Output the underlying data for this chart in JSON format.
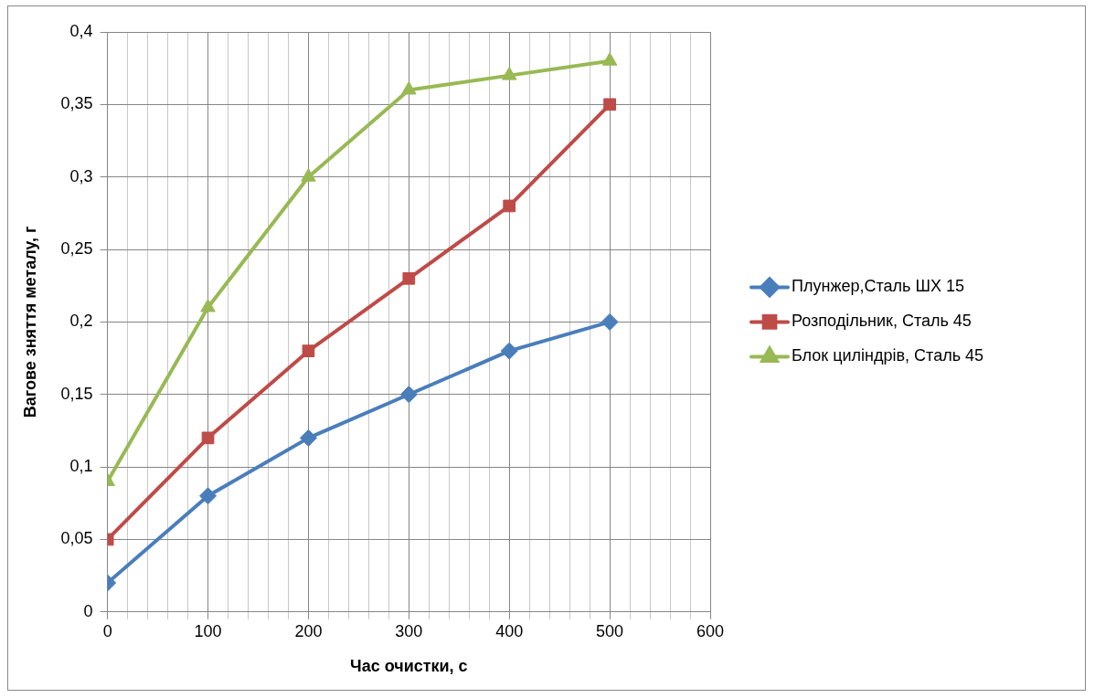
{
  "chart_data": {
    "type": "line",
    "xlabel": "Час очистки, с",
    "ylabel": "Вагове зняття металу, г",
    "x": [
      0,
      100,
      200,
      300,
      400,
      500
    ],
    "series": [
      {
        "name": "Плунжер,Сталь ШХ 15",
        "color": "#4a7ebb",
        "marker": "diamond",
        "values": [
          0.02,
          0.08,
          0.12,
          0.15,
          0.18,
          0.2
        ]
      },
      {
        "name": "Розподільник, Сталь 45",
        "color": "#be4b48",
        "marker": "square",
        "values": [
          0.05,
          0.12,
          0.18,
          0.23,
          0.28,
          0.35
        ]
      },
      {
        "name": "Блок циліндрів, Сталь 45",
        "color": "#98b954",
        "marker": "triangle",
        "values": [
          0.09,
          0.21,
          0.3,
          0.36,
          0.37,
          0.38
        ]
      }
    ],
    "xlim": [
      0,
      600
    ],
    "xticks": [
      0,
      {
        "value": 20,
        "label": null
      },
      {
        "value": 40,
        "label": null
      },
      {
        "value": 60,
        "label": null
      },
      {
        "value": 80,
        "label": null
      },
      100,
      {
        "value": 120,
        "label": null
      },
      {
        "value": 140,
        "label": null
      },
      {
        "value": 160,
        "label": null
      },
      {
        "value": 180,
        "label": null
      },
      200,
      {
        "value": 220,
        "label": null
      },
      {
        "value": 240,
        "label": null
      },
      {
        "value": 260,
        "label": null
      },
      {
        "value": 280,
        "label": null
      },
      300,
      {
        "value": 320,
        "label": null
      },
      {
        "value": 340,
        "label": null
      },
      {
        "value": 360,
        "label": null
      },
      {
        "value": 380,
        "label": null
      },
      400,
      {
        "value": 420,
        "label": null
      },
      {
        "value": 440,
        "label": null
      },
      {
        "value": 460,
        "label": null
      },
      {
        "value": 480,
        "label": null
      },
      500,
      {
        "value": 520,
        "label": null
      },
      {
        "value": 540,
        "label": null
      },
      {
        "value": 560,
        "label": null
      },
      {
        "value": 580,
        "label": null
      },
      600
    ],
    "ylim": [
      0,
      0.4
    ],
    "yticks": [
      {
        "value": 0,
        "label": "0"
      },
      {
        "value": 0.05,
        "label": "0,05"
      },
      {
        "value": 0.1,
        "label": "0,1"
      },
      {
        "value": 0.15,
        "label": "0,15"
      },
      {
        "value": 0.2,
        "label": "0,2"
      },
      {
        "value": 0.25,
        "label": "0,25"
      },
      {
        "value": 0.3,
        "label": "0,3"
      },
      {
        "value": 0.35,
        "label": "0,35"
      },
      {
        "value": 0.4,
        "label": "0,4"
      }
    ],
    "grid": true,
    "legend": "right",
    "line_style": "solid"
  }
}
